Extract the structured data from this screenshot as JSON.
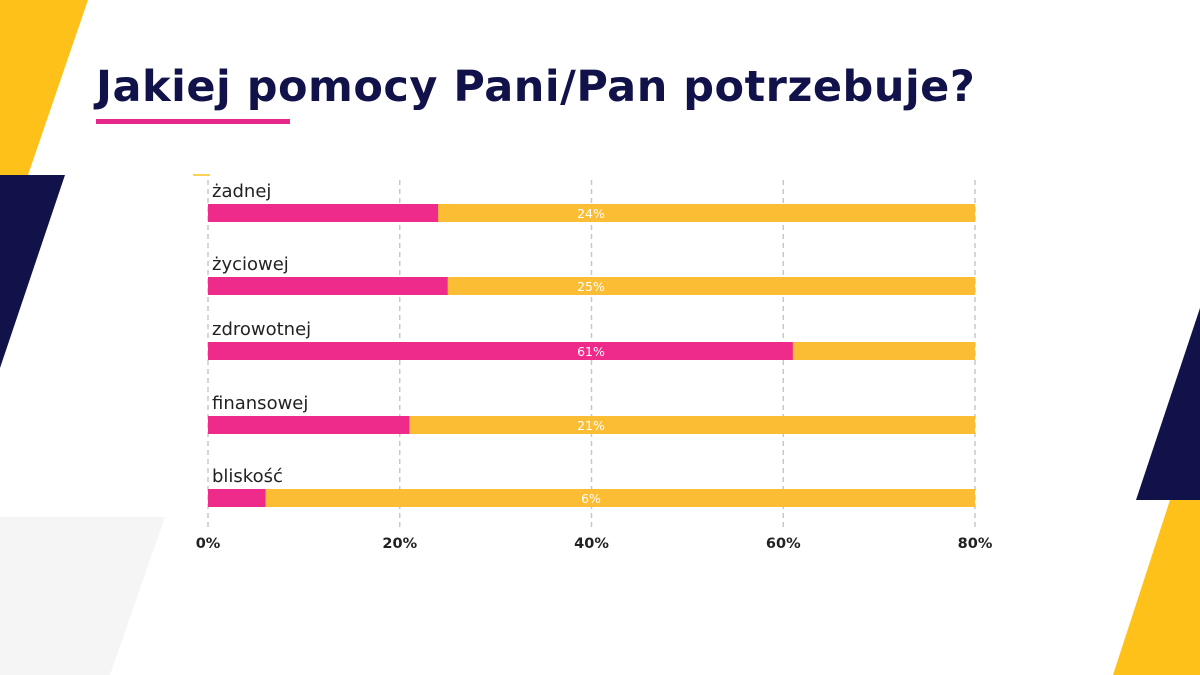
{
  "title": "Jakiej pomocy Pani/Pan potrzebuje?",
  "colors": {
    "navy": "#12124a",
    "magenta": "#ee2a8a",
    "yellow": "#fbbd33",
    "accent_yellow": "#fdc11a",
    "grid": "#c8c8c8",
    "light_gray": "#f5f5f5"
  },
  "chart_data": {
    "type": "bar",
    "orientation": "horizontal",
    "stacked": true,
    "categories": [
      "żadnej",
      "życiowej",
      "zdrowotnej",
      "finansowej",
      "bliskość"
    ],
    "values": [
      24,
      25,
      61,
      21,
      6
    ],
    "data_labels": [
      "24%",
      "25%",
      "61%",
      "21%",
      "6%"
    ],
    "background_value": 80,
    "xlim": [
      0,
      80
    ],
    "x_ticks": [
      0,
      20,
      40,
      60,
      80
    ],
    "x_tick_labels": [
      "0%",
      "20%",
      "40%",
      "60%",
      "80%"
    ],
    "grid": true,
    "grid_style": "dashed vertical",
    "legend": "none"
  }
}
